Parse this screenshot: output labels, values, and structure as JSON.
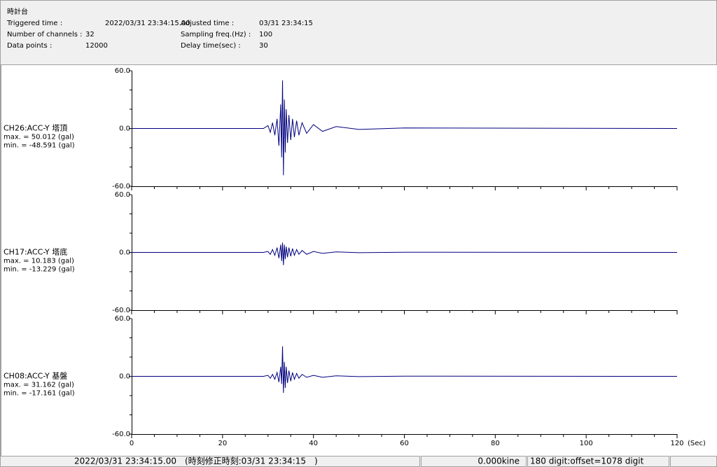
{
  "header": {
    "title": "時計台",
    "rows": [
      [
        {
          "label": "Triggered time :",
          "value": "2022/03/31 23:34:15.00"
        },
        {
          "label": "Adjusted time :",
          "value": "03/31 23:34:15"
        }
      ],
      [
        {
          "label": "Number of channels :",
          "value": "32"
        },
        {
          "label": "Sampling freq.(Hz) :",
          "value": "100"
        }
      ],
      [
        {
          "label": "Data points :",
          "value": "12000"
        },
        {
          "label": "Delay time(sec) :",
          "value": "30"
        }
      ]
    ]
  },
  "chart_data": [
    {
      "type": "line",
      "title": "CH26:ACC-Y 塔頂",
      "max_label": "max. = 50.012 (gal)",
      "min_label": "min. = -48.591 (gal)",
      "color": "#000080",
      "x": [
        0,
        29,
        30,
        30.5,
        31,
        31.5,
        32,
        32.4,
        32.8,
        33.0,
        33.2,
        33.4,
        33.6,
        33.8,
        34.0,
        34.3,
        34.6,
        35.0,
        35.4,
        35.8,
        36.3,
        36.8,
        37.5,
        38.5,
        40,
        42,
        45,
        50,
        60,
        120
      ],
      "values": [
        0,
        0,
        3,
        -4,
        6,
        -7,
        10,
        -18,
        25,
        -30,
        50.012,
        -48.591,
        30,
        -25,
        20,
        -15,
        14,
        -12,
        10,
        -9,
        8,
        -7,
        6,
        -5,
        4,
        -3,
        2,
        -1,
        0.5,
        0
      ],
      "xlim": [
        0,
        120
      ],
      "xticks": [
        0,
        20,
        40,
        60,
        80,
        100,
        120
      ],
      "ylim": [
        -60,
        60
      ],
      "yticks": [
        {
          "value": 60,
          "label": "60.0"
        },
        {
          "value": 0,
          "label": "0.0"
        },
        {
          "value": -60,
          "label": "-60.0"
        }
      ]
    },
    {
      "type": "line",
      "title": "CH17:ACC-Y 塔底",
      "max_label": "max. = 10.183 (gal)",
      "min_label": "min. = -13.229 (gal)",
      "color": "#000080",
      "x": [
        0,
        29,
        30,
        30.5,
        31,
        31.5,
        32,
        32.4,
        32.8,
        33.0,
        33.2,
        33.4,
        33.6,
        33.8,
        34.0,
        34.3,
        34.6,
        35.0,
        35.4,
        35.8,
        36.3,
        36.8,
        37.5,
        38.5,
        40,
        42,
        45,
        50,
        60,
        120
      ],
      "values": [
        0,
        0,
        1,
        -2,
        3,
        -3,
        5,
        -6,
        8,
        -9,
        10.183,
        -13.229,
        8,
        -7,
        6,
        -5,
        5,
        -4,
        4,
        -3,
        3,
        -2,
        2,
        -2,
        1,
        -1,
        0.5,
        -0.3,
        0.2,
        0
      ],
      "xlim": [
        0,
        120
      ],
      "xticks": [
        0,
        20,
        40,
        60,
        80,
        100,
        120
      ],
      "ylim": [
        -60,
        60
      ],
      "yticks": [
        {
          "value": 60,
          "label": "60.0"
        },
        {
          "value": 0,
          "label": "0.0"
        },
        {
          "value": -60,
          "label": "-60.0"
        }
      ]
    },
    {
      "type": "line",
      "title": "CH08:ACC-Y 基盤",
      "max_label": "max. = 31.162 (gal)",
      "min_label": "min. = -17.161 (gal)",
      "color": "#000080",
      "x": [
        0,
        29,
        30,
        30.5,
        31,
        31.5,
        32,
        32.4,
        32.8,
        33.0,
        33.2,
        33.4,
        33.6,
        33.8,
        34.0,
        34.3,
        34.6,
        35.0,
        35.4,
        35.8,
        36.3,
        36.8,
        37.5,
        38.5,
        40,
        42,
        45,
        50,
        60,
        120
      ],
      "values": [
        0,
        0,
        1,
        -2,
        2,
        -3,
        4,
        -6,
        10,
        -8,
        31.162,
        -17.161,
        15,
        -12,
        10,
        -7,
        6,
        -5,
        4,
        -3,
        3,
        -2,
        2,
        -1,
        1,
        -1,
        0.5,
        -0.3,
        0.2,
        0
      ],
      "xlim": [
        0,
        120
      ],
      "xticks": [
        0,
        20,
        40,
        60,
        80,
        100,
        120
      ],
      "xtick_labels": true,
      "xlabel": "(Sec)",
      "ylim": [
        -60,
        60
      ],
      "yticks": [
        {
          "value": 60,
          "label": "60.0"
        },
        {
          "value": 0,
          "label": "0.0"
        },
        {
          "value": -60,
          "label": "-60.0"
        }
      ]
    }
  ],
  "status": {
    "time": "2022/03/31 23:34:15.00　(時刻修正時刻:03/31 23:34:15　)",
    "velocity": "0.000kine",
    "digit": "180 digit:offset=1078 digit"
  }
}
